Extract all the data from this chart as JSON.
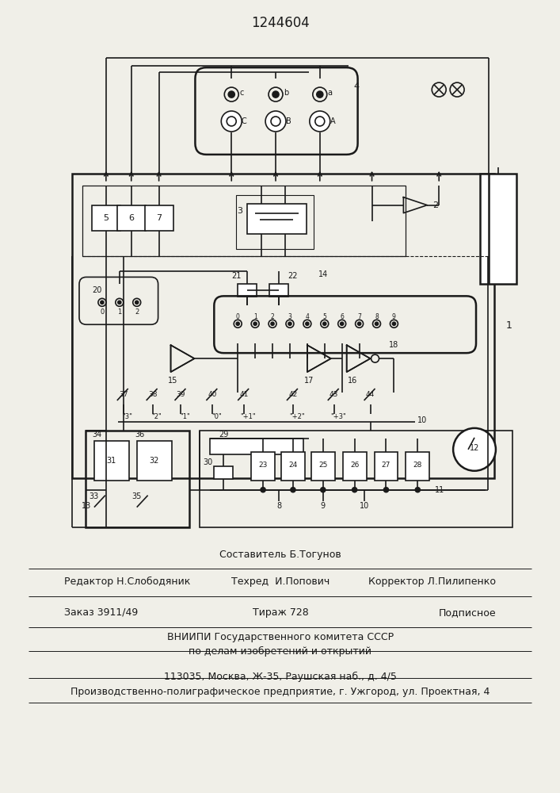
{
  "bg_color": "#f0efe8",
  "lc": "#1a1a1a",
  "patent_number": "1244604",
  "info_line0": "Составитель Б.Тогунов",
  "info_line1_left": "Редактор Н.Слободяник",
  "info_line1_center": "Техред  И.Попович",
  "info_line1_right": "Корректор Л.Пилипенко",
  "info_line2a": "Заказ 3911/49",
  "info_line2b": "Тираж 728",
  "info_line2c": "Подписное",
  "info_line3": "ВНИИПИ Государственного комитета СССР",
  "info_line4": "по делам изобретений и открытий",
  "info_line5": "113035, Москва, Ж-35, Раушская наб., д. 4/5",
  "info_line6": "Производственно-полиграфическое предприятие, г. Ужгород, ул. Проектная, 4"
}
